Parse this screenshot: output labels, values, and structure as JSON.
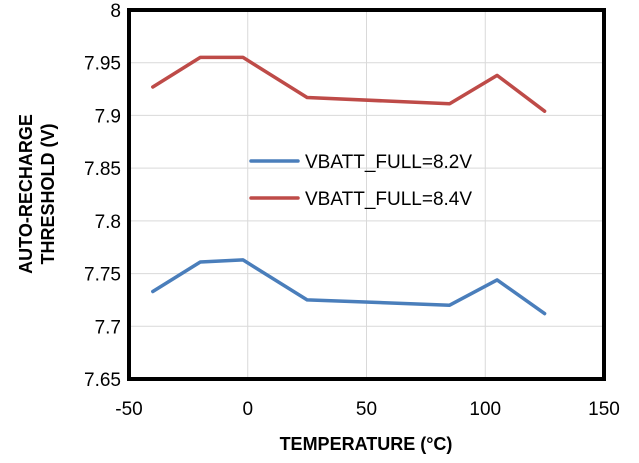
{
  "chart_data": {
    "type": "line",
    "title": "",
    "xlabel": "TEMPERATURE  (°C)",
    "ylabel_lines": [
      "AUTO-RECHARGE",
      "THRESHOLD (V)"
    ],
    "xlim": [
      -50,
      150
    ],
    "ylim": [
      7.65,
      8
    ],
    "x_ticks": [
      {
        "value": -50,
        "label": "-50"
      },
      {
        "value": 0,
        "label": "0"
      },
      {
        "value": 50,
        "label": "50"
      },
      {
        "value": 100,
        "label": "100"
      },
      {
        "value": 150,
        "label": "150"
      }
    ],
    "y_ticks": [
      {
        "value": 7.65,
        "label": "7.65"
      },
      {
        "value": 7.7,
        "label": "7.7"
      },
      {
        "value": 7.75,
        "label": "7.75"
      },
      {
        "value": 7.8,
        "label": "7.8"
      },
      {
        "value": 7.85,
        "label": "7.85"
      },
      {
        "value": 7.9,
        "label": "7.9"
      },
      {
        "value": 7.95,
        "label": "7.95"
      },
      {
        "value": 8,
        "label": "8"
      }
    ],
    "grid": true,
    "legend_position": "center-right",
    "series": [
      {
        "name": "VBATT_FULL=8.2V",
        "color": "#4a7ebb",
        "x": [
          -40,
          -20,
          -2,
          25,
          85,
          105,
          125
        ],
        "y": [
          7.733,
          7.761,
          7.763,
          7.725,
          7.72,
          7.744,
          7.712
        ]
      },
      {
        "name": "VBATT_FULL=8.4V",
        "color": "#be4b48",
        "x": [
          -40,
          -20,
          -2,
          25,
          85,
          105,
          125
        ],
        "y": [
          7.927,
          7.955,
          7.955,
          7.917,
          7.911,
          7.938,
          7.904
        ]
      }
    ]
  }
}
